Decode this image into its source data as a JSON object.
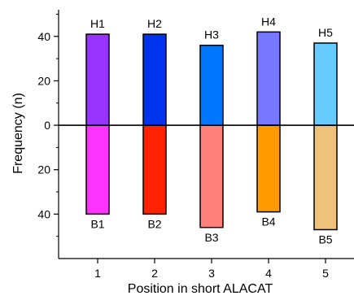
{
  "chart_data": {
    "type": "bar",
    "xlabel": "Position in short ALACAT",
    "ylabel": "Frequency (n)",
    "categories": [
      "1",
      "2",
      "3",
      "4",
      "5"
    ],
    "ylim": [
      -60,
      52
    ],
    "y_tick_values": [
      40,
      20,
      0,
      -20,
      -40
    ],
    "y_tick_labels": [
      "40",
      "20",
      "0",
      "20",
      "40"
    ],
    "grid": false,
    "series": [
      {
        "group": "upper",
        "labels": [
          "H1",
          "H2",
          "H3",
          "H4",
          "H5"
        ],
        "values": [
          41,
          41,
          36,
          42,
          37
        ],
        "colors": [
          "#9933ff",
          "#0033ee",
          "#0077ff",
          "#7777ff",
          "#66ccff"
        ]
      },
      {
        "group": "lower",
        "labels": [
          "B1",
          "B2",
          "B3",
          "B4",
          "B5"
        ],
        "values": [
          -40,
          -40,
          -46,
          -39,
          -47
        ],
        "colors": [
          "#ff33ff",
          "#ff2200",
          "#ff7f7a",
          "#ff9900",
          "#eec27a"
        ]
      }
    ]
  }
}
